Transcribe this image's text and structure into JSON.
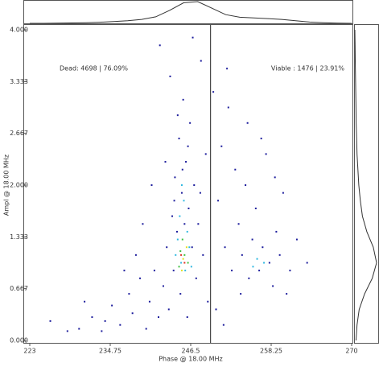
{
  "chart_data": {
    "type": "scatter",
    "x_label": "Phase @ 18.00 MHz",
    "y_label": "Ampl @ 18.00 MHz",
    "xlim": [
      223,
      270
    ],
    "ylim": [
      0,
      4
    ],
    "xticks": [
      223,
      234.75,
      246.5,
      258.25,
      270
    ],
    "yticks": [
      {
        "value": 0,
        "label": "0.000"
      },
      {
        "value": 0.667,
        "label": "0.667"
      },
      {
        "value": 1.333,
        "label": "1.333"
      },
      {
        "value": 2,
        "label": "2.000"
      },
      {
        "value": 2.667,
        "label": "2.667"
      },
      {
        "value": 3.333,
        "label": "3.333"
      },
      {
        "value": 4,
        "label": "4.000"
      }
    ],
    "gate_x": 249.4,
    "annotations": [
      "Dead: 4698 | 76.09%",
      "Viable : 1476 | 23.91%"
    ],
    "top_histogram": [
      0,
      0,
      1,
      2,
      3,
      5,
      8,
      12,
      18,
      30,
      60,
      95,
      100,
      70,
      40,
      28,
      25,
      22,
      18,
      12,
      6,
      3,
      1,
      0
    ],
    "right_histogram": [
      5,
      10,
      20,
      45,
      80,
      100,
      85,
      55,
      35,
      25,
      18,
      14,
      10,
      8,
      6,
      5,
      4,
      3,
      2,
      1,
      0
    ],
    "series": [
      {
        "color": "#1c1c9c",
        "x": [
          230.2,
          232.1,
          233.5,
          235.0,
          236.2,
          237.5,
          238.0,
          239.1,
          240.0,
          240.5,
          241.2,
          241.8,
          242.5,
          243.0,
          243.3,
          243.8,
          244.0,
          244.2,
          244.5,
          244.8,
          245.0,
          245.2,
          245.4,
          245.6,
          245.8,
          246.0,
          246.2,
          246.4,
          246.7,
          247.0,
          247.3,
          247.6,
          248.0,
          248.3,
          248.7,
          249.0,
          242.0,
          243.5,
          246.8,
          244.6,
          245.3,
          246.1,
          244.1,
          247.9,
          242.8,
          240.8,
          239.5,
          238.5,
          236.8,
          234.0,
          231.0,
          228.5,
          226.0,
          250.5,
          251.0,
          251.5,
          252.0,
          252.5,
          253.0,
          253.5,
          254.0,
          254.5,
          255.0,
          255.5,
          256.0,
          256.5,
          257.0,
          257.5,
          258.0,
          258.5,
          259.0,
          259.5,
          260.0,
          261.0,
          262.0,
          263.5,
          251.8,
          254.8,
          250.2,
          251.3,
          253.8,
          249.8,
          256.8,
          260.5,
          258.8
        ],
        "y": [
          0.15,
          0.3,
          0.12,
          0.45,
          0.2,
          0.6,
          0.35,
          0.8,
          0.15,
          0.5,
          0.9,
          0.3,
          0.7,
          1.2,
          0.4,
          1.6,
          0.9,
          2.1,
          1.4,
          2.6,
          0.6,
          1.9,
          3.1,
          1.5,
          2.3,
          0.3,
          1.7,
          2.8,
          1.2,
          2.0,
          0.8,
          1.5,
          3.6,
          1.1,
          2.4,
          0.5,
          3.8,
          3.4,
          3.9,
          2.9,
          2.2,
          2.5,
          1.8,
          1.9,
          2.3,
          2.0,
          1.5,
          1.1,
          0.9,
          0.25,
          0.5,
          0.12,
          0.25,
          1.8,
          2.5,
          1.2,
          3.0,
          0.9,
          2.2,
          1.5,
          1.1,
          2.0,
          0.8,
          1.3,
          1.7,
          0.9,
          1.2,
          2.4,
          1.0,
          0.7,
          1.4,
          1.1,
          1.9,
          0.9,
          1.3,
          1.0,
          3.5,
          2.8,
          0.4,
          0.2,
          0.6,
          3.2,
          2.6,
          0.6,
          2.1
        ]
      },
      {
        "color": "#2fb8e0",
        "x": [
          244.6,
          245.1,
          245.7,
          246.3,
          244.9,
          245.5,
          246.0,
          244.3,
          246.6,
          245.2,
          256.2,
          255.6,
          257.2
        ],
        "y": [
          1.3,
          1.0,
          0.9,
          1.2,
          1.6,
          1.8,
          1.4,
          1.1,
          0.95,
          2.0,
          1.05,
          0.95,
          1.0
        ]
      },
      {
        "color": "#3cc040",
        "x": [
          245.0,
          245.6,
          246.1,
          245.3,
          244.8
        ],
        "y": [
          1.15,
          1.1,
          1.0,
          1.3,
          0.95
        ]
      },
      {
        "color": "#e0e020",
        "x": [
          245.4,
          245.9,
          245.2
        ],
        "y": [
          1.05,
          1.2,
          0.9
        ]
      },
      {
        "color": "#e03020",
        "x": [
          245.6,
          245.1
        ],
        "y": [
          1.0,
          1.1
        ]
      }
    ]
  }
}
